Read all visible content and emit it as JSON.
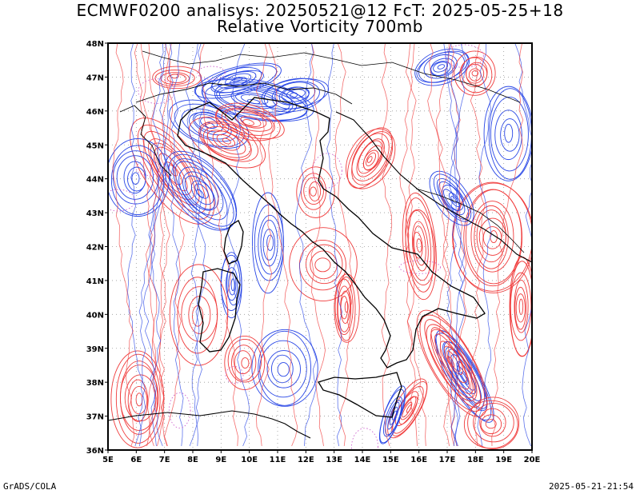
{
  "title_line1": "ECMWF0200 analisys: 20250521@12 FcT: 2025-05-25+18",
  "title_line2": "Relative Vorticity 700mb",
  "footer_left": "GrADS/COLA",
  "footer_right": "2025-05-21-21:54",
  "axes": {
    "lon_labels": [
      "5E",
      "6E",
      "7E",
      "8E",
      "9E",
      "10E",
      "11E",
      "12E",
      "13E",
      "14E",
      "15E",
      "16E",
      "17E",
      "18E",
      "19E",
      "20E"
    ],
    "lat_labels": [
      "36N",
      "37N",
      "38N",
      "39N",
      "40N",
      "41N",
      "42N",
      "43N",
      "44N",
      "45N",
      "46N",
      "47N",
      "48N"
    ],
    "lon_range": [
      5,
      20
    ],
    "lat_range": [
      36,
      48
    ]
  },
  "colors": {
    "positive_contour": "#f03c3c",
    "negative_contour": "#2846e6",
    "zero_contour": "#c850c8",
    "coastline": "#000000",
    "grid": "#9a9a9a"
  }
}
